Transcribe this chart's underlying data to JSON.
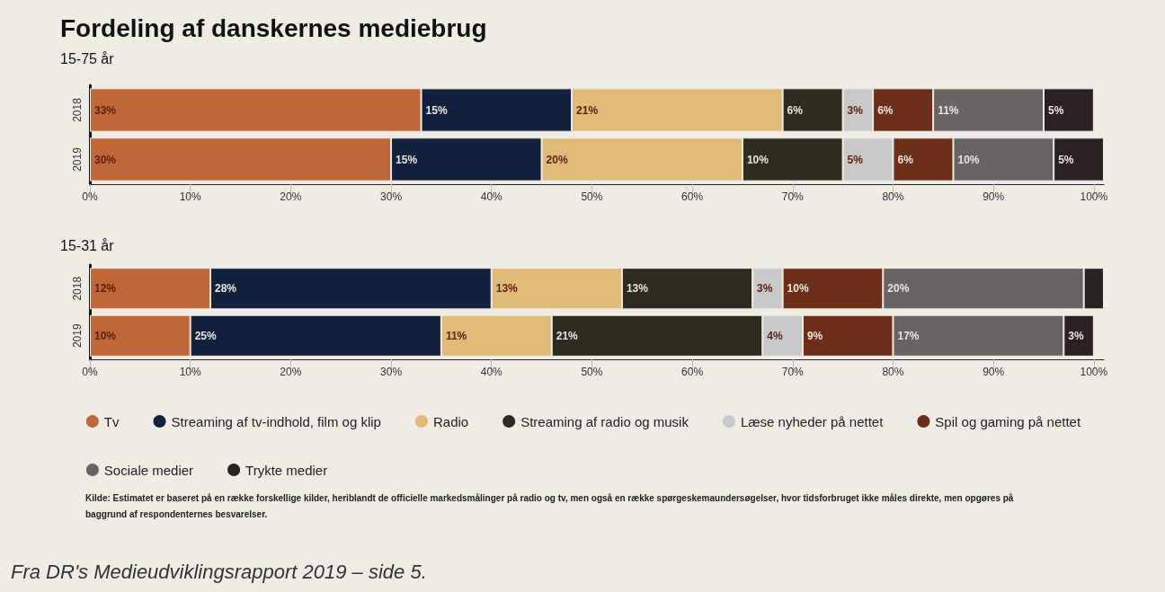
{
  "chart_data": [
    {
      "type": "bar",
      "orientation": "horizontal",
      "stacked": true,
      "title": "Fordeling af danskernes mediebrug",
      "subtitle": "15-75 år",
      "categories": [
        "2018",
        "2019"
      ],
      "series": [
        {
          "color": "#c0673a",
          "values": [
            33,
            30
          ],
          "value_labels": [
            "33%",
            "30%"
          ]
        },
        {
          "color": "#13213d",
          "values": [
            15,
            15
          ],
          "value_labels": [
            "15%",
            "15%"
          ]
        },
        {
          "color": "#e0bb78",
          "values": [
            21,
            20
          ],
          "value_labels": [
            "21%",
            "20%"
          ]
        },
        {
          "color": "#2e2c20",
          "values": [
            6,
            10
          ],
          "value_labels": [
            "6%",
            "10%"
          ]
        },
        {
          "color": "#c9c8cb",
          "values": [
            3,
            5
          ],
          "value_labels": [
            "3%",
            "5%"
          ]
        },
        {
          "color": "#6b2f17",
          "values": [
            6,
            6
          ],
          "value_labels": [
            "6%",
            "6%"
          ]
        },
        {
          "color": "#686466",
          "values": [
            11,
            10
          ],
          "value_labels": [
            "11%",
            "10%"
          ]
        },
        {
          "color": "#2a2123",
          "values": [
            5,
            5
          ],
          "value_labels": [
            "5%",
            "5%"
          ]
        }
      ],
      "xlim": [
        0,
        101
      ],
      "xticks": [
        {
          "value": 0,
          "label": "0%"
        },
        {
          "value": 10,
          "label": "10%"
        },
        {
          "value": 20,
          "label": "20%"
        },
        {
          "value": 30,
          "label": "30%"
        },
        {
          "value": 40,
          "label": "40%"
        },
        {
          "value": 50,
          "label": "50%"
        },
        {
          "value": 60,
          "label": "60%"
        },
        {
          "value": 70,
          "label": "70%"
        },
        {
          "value": 80,
          "label": "80%"
        },
        {
          "value": 90,
          "label": "90%"
        },
        {
          "value": 100,
          "label": "100%"
        }
      ],
      "grid": false,
      "legend": false
    },
    {
      "type": "bar",
      "orientation": "horizontal",
      "stacked": true,
      "subtitle": "15-31 år",
      "categories": [
        "2018",
        "2019"
      ],
      "series": [
        {
          "name": "Tv",
          "color": "#c0673a",
          "values": [
            12,
            10
          ],
          "value_labels": [
            "12%",
            "10%"
          ]
        },
        {
          "name": "Streaming af tv-indhold, film og klip",
          "color": "#13213d",
          "values": [
            28,
            25
          ],
          "value_labels": [
            "28%",
            "25%"
          ]
        },
        {
          "name": "Radio",
          "color": "#e0bb78",
          "values": [
            13,
            11
          ],
          "value_labels": [
            "13%",
            "11%"
          ]
        },
        {
          "name": "Streaming af radio og musik",
          "color": "#2e2c20",
          "values": [
            13,
            21
          ],
          "value_labels": [
            "13%",
            "21%"
          ]
        },
        {
          "name": "Læse nyheder på nettet",
          "color": "#c9c8cb",
          "values": [
            3,
            4
          ],
          "value_labels": [
            "3%",
            "4%"
          ]
        },
        {
          "name": "Spil og gaming på nettet",
          "color": "#6b2f17",
          "values": [
            10,
            9
          ],
          "value_labels": [
            "10%",
            "9%"
          ]
        },
        {
          "name": "Sociale medier",
          "color": "#686466",
          "values": [
            20,
            17
          ],
          "value_labels": [
            "20%",
            "17%"
          ]
        },
        {
          "name": "Trykte medier",
          "color": "#2a2123",
          "values": [
            2,
            3
          ],
          "value_labels": [
            null,
            "3%"
          ]
        }
      ],
      "xlim": [
        0,
        101
      ],
      "xticks": [
        {
          "value": 0,
          "label": "0%"
        },
        {
          "value": 10,
          "label": "10%"
        },
        {
          "value": 20,
          "label": "20%"
        },
        {
          "value": 30,
          "label": "30%"
        },
        {
          "value": 40,
          "label": "40%"
        },
        {
          "value": 50,
          "label": "50%"
        },
        {
          "value": 60,
          "label": "60%"
        },
        {
          "value": 70,
          "label": "70%"
        },
        {
          "value": 80,
          "label": "80%"
        },
        {
          "value": 90,
          "label": "90%"
        },
        {
          "value": 100,
          "label": "100%"
        }
      ],
      "grid": false,
      "legend": "bottom",
      "annotations": [
        "Kilde: Estimatet er baseret på en række forskellige kilder, heriblandt de officielle markedsmålinger på radio og tv, men også en række spørgeskemaundersøgelser, hvor tidsforbruget ikke måles direkte, men opgøres på baggrund af respondenternes besvarelser.",
        "Fra DR's Medieudviklingsrapport 2019 – side 5."
      ]
    }
  ]
}
